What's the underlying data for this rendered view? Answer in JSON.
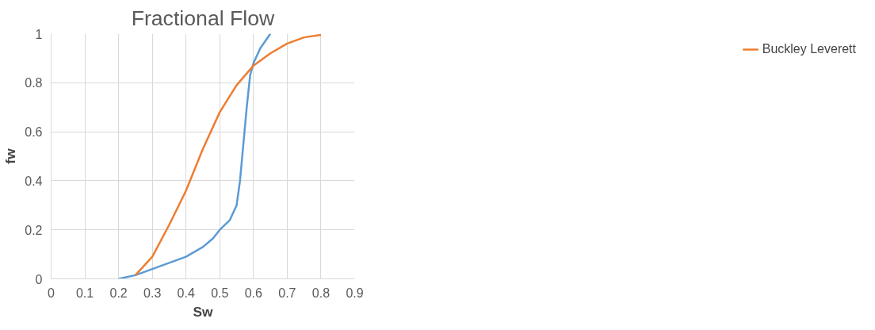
{
  "chart_data": {
    "type": "line",
    "title": "Fractional Flow",
    "xlabel": "Sw",
    "ylabel": "fw",
    "xlim": [
      0,
      0.9
    ],
    "ylim": [
      0,
      1
    ],
    "xticks": [
      0,
      0.1,
      0.2,
      0.3,
      0.4,
      0.5,
      0.6,
      0.7,
      0.8,
      0.9
    ],
    "yticks": [
      0,
      0.2,
      0.4,
      0.6,
      0.8,
      1
    ],
    "grid": true,
    "legend": "right",
    "marker": "none",
    "line_style": "solid",
    "series": [
      {
        "color": "#5b9bd5",
        "x": [
          0.2,
          0.25,
          0.3,
          0.35,
          0.4,
          0.45,
          0.48,
          0.5,
          0.53,
          0.55,
          0.56,
          0.57,
          0.58,
          0.59,
          0.6,
          0.62,
          0.65
        ],
        "values": [
          0,
          0.015,
          0.04,
          0.065,
          0.09,
          0.13,
          0.165,
          0.2,
          0.24,
          0.3,
          0.4,
          0.55,
          0.7,
          0.83,
          0.88,
          0.94,
          1.0
        ]
      },
      {
        "name": "Buckley Leverett",
        "color": "#ed7d31",
        "x": [
          0.25,
          0.3,
          0.35,
          0.4,
          0.45,
          0.5,
          0.55,
          0.6,
          0.65,
          0.7,
          0.75,
          0.8
        ],
        "values": [
          0.015,
          0.09,
          0.22,
          0.36,
          0.53,
          0.68,
          0.79,
          0.87,
          0.92,
          0.96,
          0.985,
          0.995
        ]
      }
    ]
  }
}
